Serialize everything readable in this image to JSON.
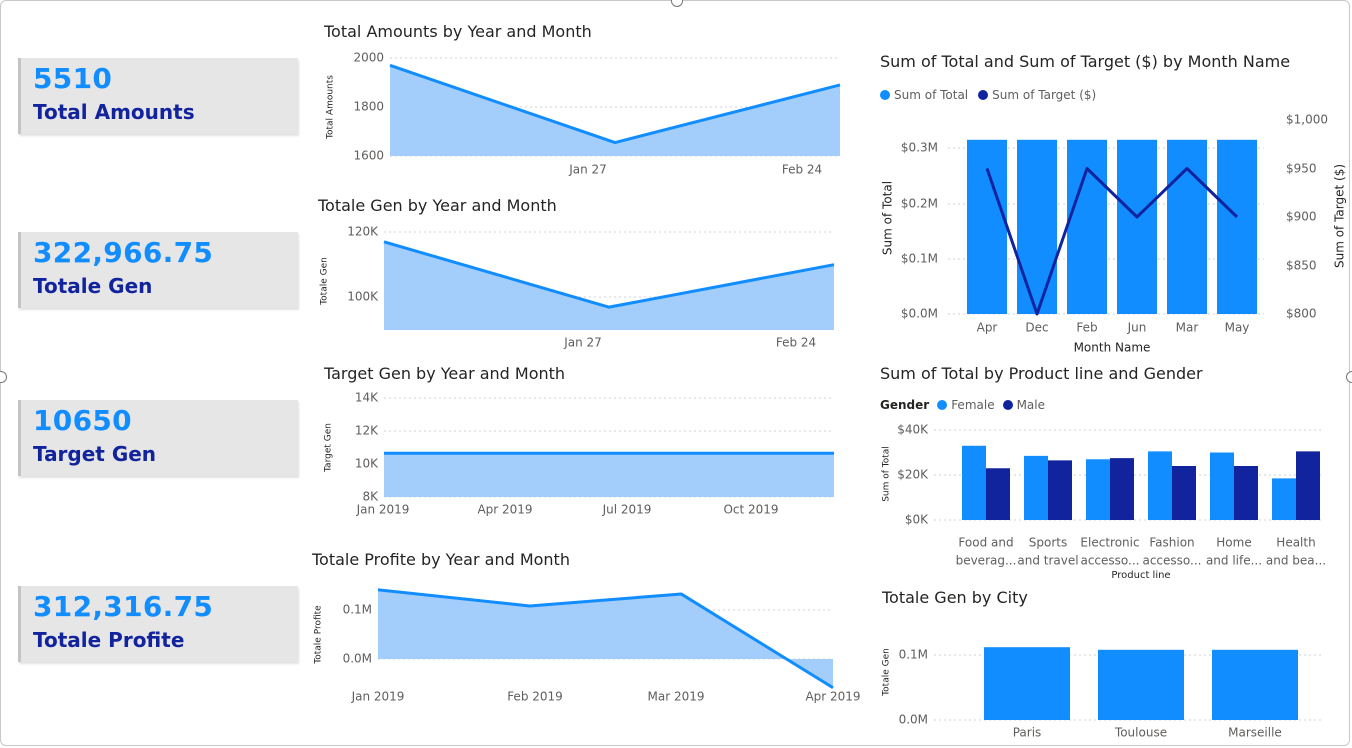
{
  "colors": {
    "accent": "#118dff",
    "dark": "#12239e",
    "area": "#a3cdfa"
  },
  "kpis": [
    {
      "value": "5510",
      "label": "Total Amounts"
    },
    {
      "value": "322,966.75",
      "label": "Totale Gen"
    },
    {
      "value": "10650",
      "label": "Target Gen"
    },
    {
      "value": "312,316.75",
      "label": "Totale Profite"
    }
  ],
  "chart_data": [
    {
      "type": "area",
      "title": "Total Amounts by Year and Month",
      "ylabel": "Total Amounts",
      "y": [
        1970,
        1655,
        1890
      ],
      "ylim": [
        1600,
        2000
      ],
      "yticks": [
        "2000",
        "1800",
        "1600"
      ],
      "xticks": [
        "Jan 27",
        "Feb 24"
      ]
    },
    {
      "type": "area",
      "title": "Totale Gen by Year and Month",
      "ylabel": "Totale Gen",
      "y": [
        117000,
        97000,
        110000
      ],
      "ylim": [
        90000,
        120000
      ],
      "yticks": [
        "120K",
        "100K"
      ],
      "xticks": [
        "Jan 27",
        "Feb 24"
      ]
    },
    {
      "type": "area",
      "title": "Target Gen by Year and Month",
      "ylabel": "Target Gen",
      "x": [
        "2019-01",
        "2019-12"
      ],
      "y": [
        10650,
        10650
      ],
      "ylim": [
        8000,
        14000
      ],
      "yticks": [
        "14K",
        "12K",
        "10K",
        "8K"
      ],
      "xticks": [
        "Jan 2019",
        "Apr 2019",
        "Jul 2019",
        "Oct 2019"
      ]
    },
    {
      "type": "area",
      "title": "Totale Profite by Year and Month",
      "ylabel": "Totale Profite",
      "x": [
        "Jan 2019",
        "Feb 2019",
        "Mar 2019",
        "Apr 2019"
      ],
      "y": [
        105000,
        86000,
        100000,
        -10000
      ],
      "ylim": [
        -15000,
        120000
      ],
      "yticks": [
        "0.1M",
        "0.0M"
      ],
      "xticks": [
        "Jan 2019",
        "Feb 2019",
        "Mar 2019",
        "Apr 2019"
      ]
    },
    {
      "type": "bar+line",
      "title": "Sum of Total and Sum of Target ($) by Month Name",
      "categories": [
        "Apr",
        "Dec",
        "Feb",
        "Jun",
        "Mar",
        "May"
      ],
      "series": [
        {
          "name": "Sum of Total",
          "values": [
            322966.75,
            322966.75,
            322966.75,
            322966.75,
            322966.75,
            322966.75
          ]
        },
        {
          "name": "Sum of Target ($)",
          "values": [
            950,
            800,
            950,
            900,
            950,
            900
          ]
        }
      ],
      "xlabel": "Month Name",
      "ylabel": "Sum of Total",
      "y2label": "Sum of Target ($)",
      "ylim": [
        0,
        330000
      ],
      "y2lim": [
        800,
        1000
      ],
      "yticks": [
        "$0.3M",
        "$0.2M",
        "$0.1M",
        "$0.0M"
      ],
      "y2ticks": [
        "$1,000",
        "$950",
        "$900",
        "$850",
        "$800"
      ]
    },
    {
      "type": "bar",
      "title": "Sum of Total by Product line and Gender",
      "legend_title": "Gender",
      "categories": [
        [
          "Food and",
          "beverag..."
        ],
        [
          "Sports",
          "and travel"
        ],
        [
          "Electronic",
          "accesso..."
        ],
        [
          "Fashion",
          "accesso..."
        ],
        [
          "Home",
          "and life..."
        ],
        [
          "Health",
          "and bea..."
        ]
      ],
      "series": [
        {
          "name": "Female",
          "values": [
            33000,
            28500,
            27000,
            30500,
            30000,
            18500
          ]
        },
        {
          "name": "Male",
          "values": [
            23000,
            26500,
            27500,
            24000,
            24000,
            30500
          ]
        }
      ],
      "xlabel": "Product line",
      "ylabel": "Sum of Total",
      "ylim": [
        0,
        40000
      ],
      "yticks": [
        "$40K",
        "$20K",
        "$0K"
      ]
    },
    {
      "type": "bar",
      "title": "Totale Gen by City",
      "categories": [
        "Paris",
        "Toulouse",
        "Marseille"
      ],
      "values": [
        112000,
        108000,
        108000
      ],
      "ylabel": "Totale Gen",
      "ylim": [
        0,
        130000
      ],
      "yticks": [
        "0.1M",
        "0.0M"
      ]
    }
  ]
}
